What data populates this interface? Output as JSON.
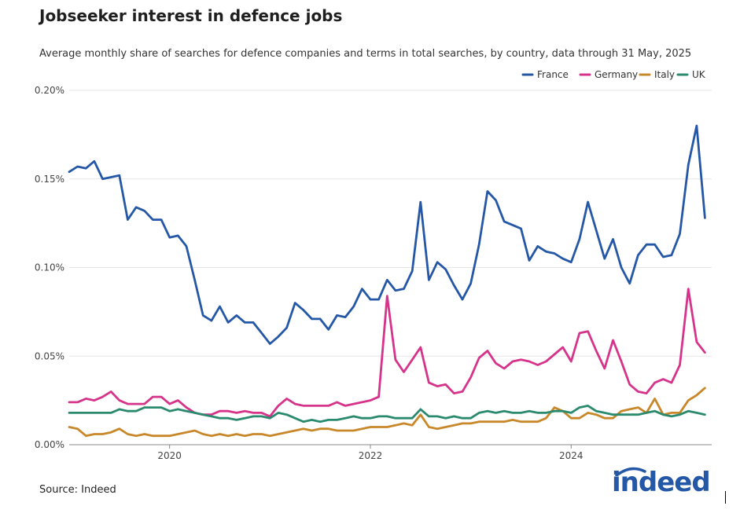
{
  "title": "Jobseeker interest in defence jobs",
  "subtitle": "Average monthly share of searches for defence companies and terms in total searches, by country, data through 31 May, 2025",
  "source": "Source: Indeed",
  "logo_text": "indeed",
  "chart_data": {
    "type": "line",
    "title": "Jobseeker interest in defence jobs",
    "xlabel": "",
    "ylabel": "",
    "ylim": [
      0,
      0.2
    ],
    "xlim": [
      2019.0,
      2025.4
    ],
    "y_ticks": [
      0,
      0.05,
      0.1,
      0.15,
      0.2
    ],
    "y_tick_labels": [
      "0.00%",
      "0.05%",
      "0.10%",
      "0.15%",
      "0.20%"
    ],
    "x_ticks": [
      2020,
      2022,
      2024
    ],
    "x_tick_labels": [
      "2020",
      "2022",
      "2024"
    ],
    "legend_position": "top-right",
    "x": [
      2019.0,
      2019.083,
      2019.167,
      2019.25,
      2019.333,
      2019.417,
      2019.5,
      2019.583,
      2019.667,
      2019.75,
      2019.833,
      2019.917,
      2020.0,
      2020.083,
      2020.167,
      2020.25,
      2020.333,
      2020.417,
      2020.5,
      2020.583,
      2020.667,
      2020.75,
      2020.833,
      2020.917,
      2021.0,
      2021.083,
      2021.167,
      2021.25,
      2021.333,
      2021.417,
      2021.5,
      2021.583,
      2021.667,
      2021.75,
      2021.833,
      2021.917,
      2022.0,
      2022.083,
      2022.167,
      2022.25,
      2022.333,
      2022.417,
      2022.5,
      2022.583,
      2022.667,
      2022.75,
      2022.833,
      2022.917,
      2023.0,
      2023.083,
      2023.167,
      2023.25,
      2023.333,
      2023.417,
      2023.5,
      2023.583,
      2023.667,
      2023.75,
      2023.833,
      2023.917,
      2024.0,
      2024.083,
      2024.167,
      2024.25,
      2024.333,
      2024.417,
      2024.5,
      2024.583,
      2024.667,
      2024.75,
      2024.833,
      2024.917,
      2025.0,
      2025.083,
      2025.167,
      2025.25,
      2025.333
    ],
    "series": [
      {
        "name": "France",
        "color": "#2557a7",
        "values": [
          0.154,
          0.157,
          0.156,
          0.16,
          0.15,
          0.151,
          0.152,
          0.127,
          0.134,
          0.132,
          0.127,
          0.127,
          0.117,
          0.118,
          0.112,
          0.093,
          0.073,
          0.07,
          0.078,
          0.069,
          0.073,
          0.069,
          0.069,
          0.063,
          0.057,
          0.061,
          0.066,
          0.08,
          0.076,
          0.071,
          0.071,
          0.065,
          0.073,
          0.072,
          0.078,
          0.088,
          0.082,
          0.082,
          0.093,
          0.087,
          0.088,
          0.098,
          0.137,
          0.093,
          0.103,
          0.099,
          0.09,
          0.082,
          0.091,
          0.113,
          0.143,
          0.138,
          0.126,
          0.124,
          0.122,
          0.104,
          0.112,
          0.109,
          0.108,
          0.105,
          0.103,
          0.116,
          0.137,
          0.121,
          0.105,
          0.116,
          0.1,
          0.091,
          0.107,
          0.113,
          0.113,
          0.106,
          0.107,
          0.119,
          0.158,
          0.18,
          0.128
        ]
      },
      {
        "name": "Germany",
        "color": "#d6338a",
        "values": [
          0.024,
          0.024,
          0.026,
          0.025,
          0.027,
          0.03,
          0.025,
          0.023,
          0.023,
          0.023,
          0.027,
          0.027,
          0.023,
          0.025,
          0.021,
          0.018,
          0.017,
          0.017,
          0.019,
          0.019,
          0.018,
          0.019,
          0.018,
          0.018,
          0.016,
          0.022,
          0.026,
          0.023,
          0.022,
          0.022,
          0.022,
          0.022,
          0.024,
          0.022,
          0.023,
          0.024,
          0.025,
          0.027,
          0.084,
          0.048,
          0.041,
          0.048,
          0.055,
          0.035,
          0.033,
          0.034,
          0.029,
          0.03,
          0.038,
          0.049,
          0.053,
          0.046,
          0.043,
          0.047,
          0.048,
          0.047,
          0.045,
          0.047,
          0.051,
          0.055,
          0.047,
          0.063,
          0.064,
          0.053,
          0.043,
          0.059,
          0.047,
          0.034,
          0.03,
          0.029,
          0.035,
          0.037,
          0.035,
          0.045,
          0.088,
          0.058,
          0.052
        ]
      },
      {
        "name": "Italy",
        "color": "#c8882a",
        "values": [
          0.01,
          0.009,
          0.005,
          0.006,
          0.006,
          0.007,
          0.009,
          0.006,
          0.005,
          0.006,
          0.005,
          0.005,
          0.005,
          0.006,
          0.007,
          0.008,
          0.006,
          0.005,
          0.006,
          0.005,
          0.006,
          0.005,
          0.006,
          0.006,
          0.005,
          0.006,
          0.007,
          0.008,
          0.009,
          0.008,
          0.009,
          0.009,
          0.008,
          0.008,
          0.008,
          0.009,
          0.01,
          0.01,
          0.01,
          0.011,
          0.012,
          0.011,
          0.017,
          0.01,
          0.009,
          0.01,
          0.011,
          0.012,
          0.012,
          0.013,
          0.013,
          0.013,
          0.013,
          0.014,
          0.013,
          0.013,
          0.013,
          0.015,
          0.021,
          0.019,
          0.015,
          0.015,
          0.018,
          0.017,
          0.015,
          0.015,
          0.019,
          0.02,
          0.021,
          0.018,
          0.026,
          0.017,
          0.018,
          0.018,
          0.025,
          0.028,
          0.032
        ]
      },
      {
        "name": "UK",
        "color": "#2a8a6e",
        "values": [
          0.018,
          0.018,
          0.018,
          0.018,
          0.018,
          0.018,
          0.02,
          0.019,
          0.019,
          0.021,
          0.021,
          0.021,
          0.019,
          0.02,
          0.019,
          0.018,
          0.017,
          0.016,
          0.015,
          0.015,
          0.014,
          0.015,
          0.016,
          0.016,
          0.015,
          0.018,
          0.017,
          0.015,
          0.013,
          0.014,
          0.013,
          0.014,
          0.014,
          0.015,
          0.016,
          0.015,
          0.015,
          0.016,
          0.016,
          0.015,
          0.015,
          0.015,
          0.02,
          0.016,
          0.016,
          0.015,
          0.016,
          0.015,
          0.015,
          0.018,
          0.019,
          0.018,
          0.019,
          0.018,
          0.018,
          0.019,
          0.018,
          0.018,
          0.019,
          0.019,
          0.018,
          0.021,
          0.022,
          0.019,
          0.018,
          0.017,
          0.017,
          0.017,
          0.017,
          0.018,
          0.019,
          0.017,
          0.016,
          0.017,
          0.019,
          0.018,
          0.017
        ]
      }
    ]
  }
}
